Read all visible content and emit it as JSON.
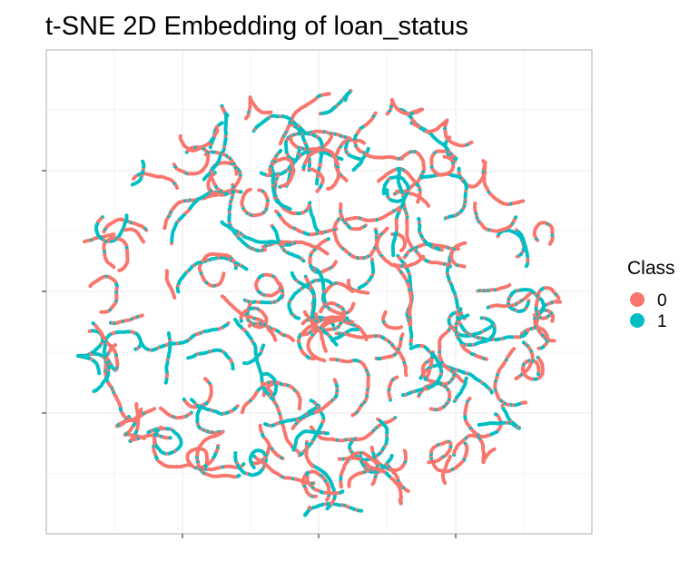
{
  "chart_data": {
    "type": "scatter",
    "title": "t-SNE 2D Embedding of loan_status",
    "xlabel": "",
    "ylabel": "",
    "grid": true,
    "axis_ticks_labeled": false,
    "legend": {
      "title": "Class",
      "position": "right",
      "entries": [
        "0",
        "1"
      ]
    },
    "series": [
      {
        "name": "0",
        "color": "#F8766D",
        "values": []
      },
      {
        "name": "1",
        "color": "#00BFC4",
        "values": []
      }
    ],
    "point_count_estimate": 5200,
    "cluster_shape": "circular cloud of short curved chains, mixed classes"
  }
}
